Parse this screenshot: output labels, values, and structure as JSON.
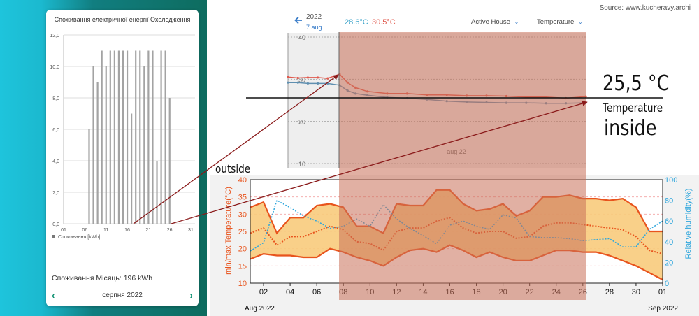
{
  "source_text": "Source: www.kucheravy.archi",
  "left_card": {
    "title": "Споживання електричної енергії Охолодження",
    "legend": "Споживання [kWh]",
    "month_total": "Споживання Місяць: 196 kWh",
    "month": "серпня 2022",
    "prev_icon": "chevron-left-icon",
    "next_icon": "chevron-right-icon"
  },
  "top_header": {
    "year": "2022",
    "date": "7 aug",
    "temp_blue": "28.6°C",
    "temp_red": "30.5°C",
    "house_select": "Active House",
    "metric_select": "Temperature",
    "back_icon": "arrow-left-icon",
    "dropdown_icon": "chevron-down-icon"
  },
  "annotations": {
    "value": "25,5 °C",
    "line1": "Temperature",
    "line2": "inside",
    "outside": "outside"
  },
  "colors": {
    "bar": "#a3a3a3",
    "red": "#e05a4e",
    "blue": "#5f8fb0",
    "highlight": "#c96f58",
    "orange": "#e8541d",
    "band": "#f8cb7c",
    "humidity": "#2ea6dc",
    "arrow": "#8b1b1b",
    "back_blue": "#3a7dc9",
    "nav_green": "#0a8f6f"
  },
  "chart_data": [
    {
      "id": "daily-energy",
      "type": "bar",
      "title": "Споживання електричної енергії Охолодження",
      "x_ticks": [
        "01",
        "06",
        "11",
        "16",
        "21",
        "26",
        "31"
      ],
      "y_ticks": [
        "0,0",
        "2,0",
        "4,0",
        "6,0",
        "8,0",
        "10,0",
        "12,0"
      ],
      "ylim": [
        0,
        12
      ],
      "legend": "Споживання [kWh]",
      "bars": [
        {
          "day": 7,
          "value": 6
        },
        {
          "day": 8,
          "value": 10
        },
        {
          "day": 9,
          "value": 9
        },
        {
          "day": 10,
          "value": 11
        },
        {
          "day": 11,
          "value": 10
        },
        {
          "day": 12,
          "value": 11
        },
        {
          "day": 13,
          "value": 11
        },
        {
          "day": 14,
          "value": 11
        },
        {
          "day": 15,
          "value": 11
        },
        {
          "day": 16,
          "value": 11
        },
        {
          "day": 17,
          "value": 7
        },
        {
          "day": 18,
          "value": 11
        },
        {
          "day": 19,
          "value": 11
        },
        {
          "day": 20,
          "value": 10
        },
        {
          "day": 21,
          "value": 11
        },
        {
          "day": 22,
          "value": 11
        },
        {
          "day": 23,
          "value": 4
        },
        {
          "day": 24,
          "value": 11
        },
        {
          "day": 25,
          "value": 11
        },
        {
          "day": 26,
          "value": 8
        }
      ]
    },
    {
      "id": "indoor-temperature",
      "type": "line",
      "y_ticks": [
        "10",
        "20",
        "30",
        "40"
      ],
      "ylim": [
        9,
        41
      ],
      "x_label": "aug 22",
      "series": [
        {
          "name": "max",
          "color": "#e05a4e",
          "points": [
            [
              0,
              30.5
            ],
            [
              0.5,
              30.3
            ],
            [
              1,
              30.4
            ],
            [
              1.5,
              30.4
            ],
            [
              2,
              30.2
            ],
            [
              2.6,
              31.2
            ],
            [
              3,
              29.2
            ],
            [
              3.4,
              28.0
            ],
            [
              4,
              27.1
            ],
            [
              5,
              26.6
            ],
            [
              6,
              26.6
            ],
            [
              7,
              26.3
            ],
            [
              8,
              26.3
            ],
            [
              9,
              26.1
            ],
            [
              10,
              26.1
            ],
            [
              11,
              26.0
            ],
            [
              12,
              25.8
            ],
            [
              13,
              25.8
            ],
            [
              14,
              25.5
            ],
            [
              15,
              25.9
            ]
          ]
        },
        {
          "name": "min",
          "color": "#5f8fb0",
          "points": [
            [
              0,
              29.2
            ],
            [
              0.5,
              29.2
            ],
            [
              1,
              29.0
            ],
            [
              1.5,
              29.0
            ],
            [
              2,
              29.0
            ],
            [
              2.6,
              28.6
            ],
            [
              3,
              27.3
            ],
            [
              3.4,
              26.6
            ],
            [
              4,
              26.2
            ],
            [
              5,
              25.7
            ],
            [
              6,
              25.5
            ],
            [
              7,
              25.2
            ],
            [
              8,
              24.8
            ],
            [
              9,
              24.6
            ],
            [
              10,
              24.5
            ],
            [
              11,
              24.4
            ],
            [
              12,
              24.4
            ],
            [
              13,
              24.3
            ],
            [
              14,
              24.3
            ],
            [
              15,
              24.4
            ]
          ]
        }
      ]
    },
    {
      "id": "outdoor-climate",
      "type": "line",
      "x_ticks": [
        "02",
        "04",
        "06",
        "08",
        "10",
        "12",
        "14",
        "16",
        "18",
        "20",
        "22",
        "24",
        "26",
        "28",
        "30",
        "01"
      ],
      "x_start_label": "Aug 2022",
      "x_end_label": "Sep 2022",
      "y_left_label": "min/max Temperature(°C)",
      "y_left_ticks": [
        "10",
        "15",
        "20",
        "25",
        "30",
        "35",
        "40"
      ],
      "y_left_lim": [
        10,
        40
      ],
      "y_right_label": "Relative humidity(%)",
      "y_right_ticks": [
        "0",
        "20",
        "40",
        "60",
        "80",
        "100"
      ],
      "y_right_lim": [
        0,
        100
      ],
      "days": [
        1,
        2,
        3,
        4,
        5,
        6,
        7,
        8,
        9,
        10,
        11,
        12,
        13,
        14,
        15,
        16,
        17,
        18,
        19,
        20,
        21,
        22,
        23,
        24,
        25,
        26,
        27,
        28,
        29,
        30,
        31,
        32
      ],
      "t_max": [
        32,
        33.5,
        24.5,
        29,
        29,
        32.5,
        33,
        32,
        26.5,
        26.5,
        24.5,
        33,
        32.5,
        32.5,
        37,
        37,
        33,
        31,
        31.5,
        33,
        29.5,
        31,
        35,
        35,
        35.5,
        34.5,
        34.5,
        34,
        34.5,
        32,
        25,
        25
      ],
      "t_min": [
        17,
        18.5,
        18,
        18,
        17.5,
        17.5,
        20,
        19,
        17.5,
        16.5,
        15,
        17.5,
        19.5,
        20,
        19,
        21,
        19.5,
        17.5,
        19,
        17.5,
        16.5,
        16.5,
        18,
        19.5,
        19.5,
        19,
        19,
        18,
        16.5,
        15,
        13,
        11
      ],
      "t_mean": [
        24.5,
        26,
        21,
        23.5,
        23.5,
        25,
        26.5,
        25.5,
        22,
        21.5,
        19.5,
        25,
        26,
        26,
        28,
        29,
        26,
        24.5,
        25,
        25,
        23,
        23.5,
        26.5,
        27.5,
        27.5,
        27,
        26.5,
        26,
        25.5,
        23.5,
        19.5,
        18.5
      ],
      "humidity": [
        31,
        39,
        80,
        73,
        65,
        60,
        53,
        55,
        62,
        55,
        76,
        62,
        53,
        46,
        38,
        56,
        60,
        55,
        52,
        66,
        63,
        45,
        44,
        44,
        43,
        41,
        42,
        43,
        35,
        35,
        52,
        60
      ]
    }
  ]
}
